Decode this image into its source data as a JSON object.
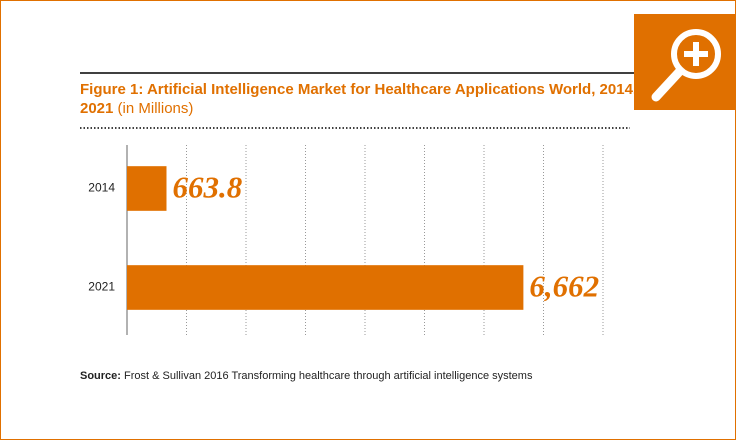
{
  "chart_data": {
    "type": "hbar",
    "title": "Figure 1: Artificial Intelligence Market for Healthcare Applications World, 2014, 2021",
    "subtitle": "(in Millions)",
    "categories": [
      "2014",
      "2021"
    ],
    "values": [
      663.8,
      6662
    ],
    "value_labels": [
      "663.8",
      "6,662"
    ],
    "color": "#e07000",
    "xlim": [
      0,
      8000
    ],
    "xticks": [
      0,
      1000,
      2000,
      3000,
      4000,
      5000,
      6000,
      7000,
      8000
    ],
    "grid": true,
    "source_label": "Source:",
    "source": "Frost & Sullivan 2016 Transforming healthcare through artificial intelligence systems"
  }
}
